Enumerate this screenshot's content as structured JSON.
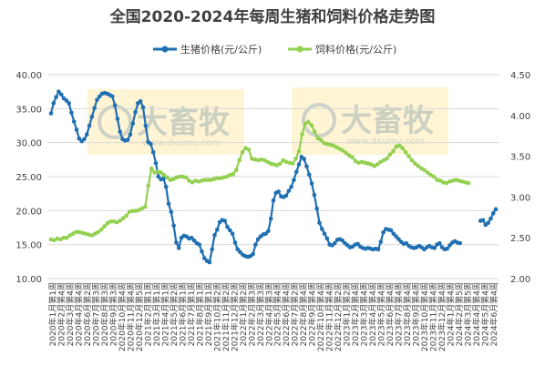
{
  "chart_data": {
    "type": "line",
    "title": "全国2020-2024年每周生猪和饲料价格走势图",
    "legend_position": "top",
    "grid": "horizontal",
    "left_axis": {
      "ylim": [
        10,
        40
      ],
      "ticks": [
        "10.00",
        "15.00",
        "20.00",
        "25.00",
        "30.00",
        "35.00",
        "40.00"
      ]
    },
    "right_axis": {
      "ylim": [
        2.0,
        4.5
      ],
      "ticks": [
        "2.00",
        "2.50",
        "3.00",
        "3.50",
        "4.00",
        "4.50"
      ]
    },
    "x_labels": [
      "2020年1月第1周",
      "2020年2月第4周",
      "2020年3月第4周",
      "2020年4月第4周",
      "2020年6月第2周",
      "2020年7月第3周",
      "2020年8月第3周",
      "2020年9月第3周",
      "2020年10月第4周",
      "2020年11月第4周",
      "2020年12月第5周",
      "2021年2月第1周",
      "2021年3月第1周",
      "2021年4月第1周",
      "2021年5月第2周",
      "2021年6月第1周",
      "2021年7月第1周",
      "2021年8月第1周",
      "2021年9月第1周",
      "2021年10月第2周",
      "2021年11月第2周",
      "2021年12月第2周",
      "2022年1月第2周",
      "2022年2月第3周",
      "2022年3月第3周",
      "2022年4月第3周",
      "2022年5月第4周",
      "2022年6月第4周",
      "2022年7月第2周",
      "2022年8月第4周",
      "2022年9月第4周",
      "2022年10月第4周",
      "2022年11月第4周",
      "2022年12月第2周",
      "2023年1月第2周",
      "2023年2月第4周",
      "2023年3月第4周",
      "2023年4月第4周",
      "2023年5月第4周",
      "2023年6月第4周",
      "2023年7月第4周",
      "2023年8月第4周",
      "2023年9月第4周",
      "2023年10月第4周",
      "2023年11月第4周",
      "2023年12月第4周",
      "2024年1月第4周",
      "2024年2月第5周",
      "2024年3月第5周",
      "2024年4月第4周",
      "2024年5月第4周",
      "2024年6月第4周"
    ],
    "series": [
      {
        "name": "生猪价格(元/公斤)",
        "axis": "left",
        "color": "#1f6fb2",
        "values": [
          34.3,
          35.8,
          36.7,
          37.5,
          37.1,
          36.5,
          36.2,
          35.8,
          34.4,
          33.1,
          31.9,
          30.6,
          30.2,
          30.5,
          31.2,
          32.5,
          33.8,
          35.1,
          36.3,
          36.8,
          37.2,
          37.3,
          37.2,
          37.0,
          36.8,
          35.5,
          33.5,
          31.6,
          30.5,
          30.3,
          30.4,
          31.2,
          32.8,
          34.5,
          35.8,
          36.1,
          35.2,
          32.5,
          30.1,
          29.8,
          28.6,
          27.0,
          25.0,
          24.6,
          24.7,
          23.5,
          21.0,
          19.8,
          17.8,
          15.3,
          14.5,
          16.0,
          16.3,
          16.2,
          15.9,
          16.0,
          15.6,
          15.2,
          15.0,
          14.0,
          13.0,
          12.6,
          12.4,
          14.3,
          16.4,
          17.2,
          18.3,
          18.6,
          18.5,
          17.6,
          17.1,
          16.6,
          15.3,
          14.3,
          13.9,
          13.5,
          13.3,
          13.2,
          13.3,
          13.6,
          15.0,
          15.8,
          16.2,
          16.5,
          16.6,
          17.0,
          18.8,
          21.5,
          22.6,
          22.8,
          22.1,
          22.0,
          22.2,
          22.9,
          23.5,
          24.5,
          25.7,
          26.8,
          27.9,
          27.6,
          26.5,
          25.3,
          24.0,
          22.3,
          20.3,
          18.2,
          17.3,
          16.6,
          15.9,
          15.0,
          14.9,
          15.2,
          15.7,
          15.8,
          15.6,
          15.2,
          14.9,
          14.6,
          14.7,
          15.0,
          15.1,
          14.7,
          14.5,
          14.4,
          14.5,
          14.4,
          14.3,
          14.4,
          14.3,
          15.4,
          16.8,
          17.3,
          17.2,
          17.1,
          16.6,
          16.2,
          15.8,
          15.4,
          15.1,
          15.2,
          14.8,
          14.6,
          14.5,
          14.6,
          14.8,
          14.6,
          14.3,
          14.6,
          14.8,
          14.6,
          14.5,
          15.0,
          15.2,
          14.6,
          14.3,
          14.4,
          14.9,
          15.3,
          15.5,
          15.3,
          15.2,
          null,
          null,
          null,
          null,
          null,
          null,
          null,
          18.5,
          18.6,
          17.9,
          18.2,
          18.8,
          19.6,
          20.2
        ],
        "note": "weekly readings"
      },
      {
        "name": "饲料价格(元/公斤)",
        "axis": "right",
        "color": "#92d050",
        "values": [
          2.48,
          2.47,
          2.49,
          2.48,
          2.5,
          2.5,
          2.53,
          2.55,
          2.57,
          2.57,
          2.56,
          2.55,
          2.54,
          2.53,
          2.55,
          2.57,
          2.6,
          2.64,
          2.68,
          2.7,
          2.7,
          2.69,
          2.71,
          2.74,
          2.77,
          2.82,
          2.83,
          2.83,
          2.84,
          2.86,
          2.88,
          3.14,
          3.35,
          3.3,
          3.31,
          3.3,
          3.27,
          3.24,
          3.21,
          3.22,
          3.24,
          3.25,
          3.25,
          3.24,
          3.2,
          3.18,
          3.2,
          3.19,
          3.2,
          3.21,
          3.21,
          3.21,
          3.22,
          3.23,
          3.23,
          3.24,
          3.25,
          3.27,
          3.28,
          3.33,
          3.45,
          3.55,
          3.6,
          3.58,
          3.47,
          3.46,
          3.45,
          3.46,
          3.45,
          3.43,
          3.41,
          3.4,
          3.39,
          3.41,
          3.45,
          3.43,
          3.42,
          3.41,
          3.47,
          3.56,
          3.77,
          3.9,
          3.92,
          3.88,
          3.8,
          3.72,
          3.7,
          3.66,
          3.65,
          3.64,
          3.63,
          3.61,
          3.59,
          3.57,
          3.54,
          3.51,
          3.49,
          3.44,
          3.42,
          3.43,
          3.42,
          3.41,
          3.4,
          3.38,
          3.4,
          3.43,
          3.45,
          3.47,
          3.52,
          3.56,
          3.62,
          3.63,
          3.6,
          3.55,
          3.5,
          3.45,
          3.41,
          3.38,
          3.35,
          3.33,
          3.3,
          3.27,
          3.25,
          3.21,
          3.2,
          3.18,
          3.17,
          3.19,
          3.2,
          3.21,
          3.2,
          3.19,
          3.18,
          3.17
        ]
      }
    ]
  },
  "watermarks": [
    {
      "brand": "大畜牧",
      "url": "www.dxumu.com"
    },
    {
      "brand": "大畜牧",
      "url": "www.dxumu.com"
    }
  ],
  "colors": {
    "grid": "#d9d9d9",
    "axis_text": "#404040",
    "watermark_bg": "#fff2cc"
  }
}
